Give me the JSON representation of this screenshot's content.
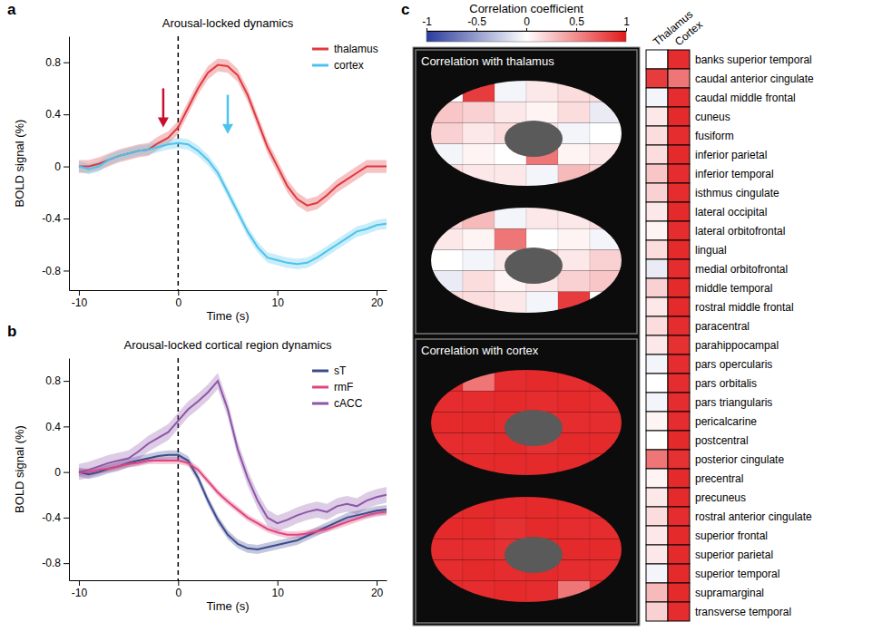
{
  "chart_data": [
    {
      "type": "line",
      "panel_label": "a",
      "title": "Arousal-locked dynamics",
      "x_label": "Time (s)",
      "y_label": "BOLD signal (%)",
      "x": [
        -10,
        -9,
        -8,
        -7,
        -6,
        -5,
        -4,
        -3,
        -2,
        -1,
        0,
        1,
        2,
        3,
        4,
        5,
        6,
        7,
        8,
        9,
        10,
        11,
        12,
        13,
        14,
        15,
        16,
        17,
        18,
        19,
        20,
        21
      ],
      "series": [
        {
          "name": "thalamus",
          "color": "#e0393e",
          "values": [
            0,
            0,
            0.02,
            0.05,
            0.08,
            0.1,
            0.12,
            0.13,
            0.18,
            0.22,
            0.3,
            0.45,
            0.6,
            0.72,
            0.78,
            0.77,
            0.7,
            0.55,
            0.35,
            0.15,
            0,
            -0.15,
            -0.25,
            -0.3,
            -0.28,
            -0.22,
            -0.15,
            -0.1,
            -0.05,
            0,
            0,
            0
          ],
          "errors": [
            0.05,
            0.05,
            0.05,
            0.05,
            0.05,
            0.05,
            0.05,
            0.05,
            0.05,
            0.05,
            0.05,
            0.05,
            0.05,
            0.05,
            0.05,
            0.05,
            0.05,
            0.05,
            0.05,
            0.05,
            0.05,
            0.05,
            0.05,
            0.05,
            0.05,
            0.05,
            0.05,
            0.05,
            0.05,
            0.05,
            0.05,
            0.05
          ]
        },
        {
          "name": "cortex",
          "color": "#4cc3ec",
          "values": [
            0,
            -0.02,
            0,
            0.05,
            0.08,
            0.1,
            0.12,
            0.13,
            0.15,
            0.17,
            0.18,
            0.17,
            0.12,
            0.05,
            -0.05,
            -0.2,
            -0.35,
            -0.5,
            -0.62,
            -0.7,
            -0.72,
            -0.74,
            -0.75,
            -0.74,
            -0.7,
            -0.65,
            -0.6,
            -0.55,
            -0.5,
            -0.48,
            -0.45,
            -0.44
          ],
          "errors": [
            0.04,
            0.04,
            0.04,
            0.04,
            0.04,
            0.04,
            0.04,
            0.04,
            0.04,
            0.04,
            0.04,
            0.04,
            0.04,
            0.04,
            0.04,
            0.04,
            0.04,
            0.04,
            0.04,
            0.04,
            0.04,
            0.04,
            0.04,
            0.04,
            0.04,
            0.04,
            0.04,
            0.04,
            0.04,
            0.04,
            0.04,
            0.04
          ]
        }
      ],
      "vline": 0,
      "arrows": [
        {
          "x": -1.5,
          "y_from": 0.6,
          "y_to": 0.3,
          "color": "#c8102e"
        },
        {
          "x": 5,
          "y_from": 0.55,
          "y_to": 0.25,
          "color": "#4cc3ec"
        }
      ],
      "xlim": [
        -11,
        21
      ],
      "xticks": [
        -10,
        0,
        10,
        20
      ],
      "ylim": [
        -0.95,
        1.0
      ],
      "yticks": [
        -0.8,
        -0.4,
        0,
        0.4,
        0.8
      ],
      "legend": "upper right"
    },
    {
      "type": "line",
      "panel_label": "b",
      "title": "Arousal-locked cortical region dynamics",
      "x_label": "Time (s)",
      "y_label": "BOLD signal (%)",
      "x": [
        -10,
        -9,
        -8,
        -7,
        -6,
        -5,
        -4,
        -3,
        -2,
        -1,
        0,
        1,
        2,
        3,
        4,
        5,
        6,
        7,
        8,
        9,
        10,
        11,
        12,
        13,
        14,
        15,
        16,
        17,
        18,
        19,
        20,
        21
      ],
      "series": [
        {
          "name": "sT",
          "color": "#3d4a8f",
          "values": [
            0,
            -0.02,
            0,
            0.03,
            0.05,
            0.08,
            0.1,
            0.12,
            0.14,
            0.15,
            0.15,
            0.1,
            -0.05,
            -0.25,
            -0.42,
            -0.55,
            -0.63,
            -0.67,
            -0.68,
            -0.66,
            -0.64,
            -0.62,
            -0.6,
            -0.56,
            -0.52,
            -0.48,
            -0.44,
            -0.4,
            -0.38,
            -0.36,
            -0.34,
            -0.33
          ],
          "errors": [
            0.04,
            0.04,
            0.04,
            0.04,
            0.04,
            0.04,
            0.04,
            0.04,
            0.04,
            0.04,
            0.04,
            0.04,
            0.04,
            0.04,
            0.04,
            0.04,
            0.04,
            0.04,
            0.04,
            0.04,
            0.04,
            0.04,
            0.04,
            0.04,
            0.04,
            0.04,
            0.04,
            0.04,
            0.04,
            0.04,
            0.04,
            0.04
          ]
        },
        {
          "name": "rmF",
          "color": "#e0457e",
          "values": [
            0,
            0,
            0.02,
            0.03,
            0.05,
            0.07,
            0.08,
            0.1,
            0.1,
            0.1,
            0.1,
            0.08,
            0.02,
            -0.08,
            -0.18,
            -0.26,
            -0.33,
            -0.4,
            -0.45,
            -0.5,
            -0.53,
            -0.55,
            -0.55,
            -0.54,
            -0.52,
            -0.5,
            -0.47,
            -0.44,
            -0.41,
            -0.38,
            -0.36,
            -0.35
          ],
          "errors": [
            0.03,
            0.03,
            0.03,
            0.03,
            0.03,
            0.03,
            0.03,
            0.03,
            0.03,
            0.03,
            0.03,
            0.03,
            0.03,
            0.03,
            0.03,
            0.03,
            0.03,
            0.03,
            0.03,
            0.03,
            0.03,
            0.03,
            0.03,
            0.03,
            0.03,
            0.03,
            0.03,
            0.03,
            0.03,
            0.03,
            0.03,
            0.03
          ]
        },
        {
          "name": "cACC",
          "color": "#8e55a8",
          "values": [
            0,
            0.02,
            0.05,
            0.08,
            0.1,
            0.12,
            0.18,
            0.25,
            0.3,
            0.35,
            0.45,
            0.55,
            0.62,
            0.7,
            0.8,
            0.55,
            0.2,
            -0.05,
            -0.25,
            -0.4,
            -0.45,
            -0.42,
            -0.38,
            -0.35,
            -0.33,
            -0.35,
            -0.3,
            -0.28,
            -0.3,
            -0.25,
            -0.22,
            -0.2
          ],
          "errors": [
            0.07,
            0.07,
            0.07,
            0.07,
            0.07,
            0.07,
            0.07,
            0.07,
            0.07,
            0.07,
            0.07,
            0.07,
            0.07,
            0.07,
            0.07,
            0.07,
            0.07,
            0.07,
            0.07,
            0.07,
            0.07,
            0.07,
            0.07,
            0.07,
            0.07,
            0.07,
            0.07,
            0.07,
            0.07,
            0.07,
            0.07,
            0.07
          ]
        }
      ],
      "vline": 0,
      "xlim": [
        -11,
        21
      ],
      "xticks": [
        -10,
        0,
        10,
        20
      ],
      "ylim": [
        -0.95,
        1.0
      ],
      "yticks": [
        -0.8,
        -0.4,
        0,
        0.4,
        0.8
      ],
      "legend": "upper right"
    },
    {
      "type": "heatmap",
      "panel_label": "c",
      "brain_titles": [
        "Correlation with thalamus",
        "Correlation with cortex"
      ],
      "x_categories": [
        "Thalamus",
        "Cortex"
      ],
      "y_categories": [
        "banks superior temporal",
        "caudal anterior cingulate",
        "caudal middle frontal",
        "cuneus",
        "fusiform",
        "inferior parietal",
        "inferior temporal",
        "isthmus cingulate",
        "lateral occipital",
        "lateral orbitofrontal",
        "lingual",
        "medial orbitofrontal",
        "middle temporal",
        "rostral middle frontal",
        "paracentral",
        "parahippocampal",
        "pars opercularis",
        "pars orbitalis",
        "pars triangularis",
        "pericalcarine",
        "postcentral",
        "posterior cingulate",
        "precentral",
        "precuneus",
        "rostral anterior cingulate",
        "superior frontal",
        "superior parietal",
        "superior temporal",
        "supramarginal",
        "transverse temporal"
      ],
      "cells": [
        [
          0.0,
          0.92
        ],
        [
          0.85,
          0.6
        ],
        [
          -0.05,
          0.92
        ],
        [
          0.1,
          0.93
        ],
        [
          0.15,
          0.92
        ],
        [
          0.15,
          0.93
        ],
        [
          0.25,
          0.92
        ],
        [
          0.2,
          0.92
        ],
        [
          0.1,
          0.93
        ],
        [
          0.05,
          0.92
        ],
        [
          0.15,
          0.93
        ],
        [
          -0.1,
          0.92
        ],
        [
          0.2,
          0.93
        ],
        [
          0.1,
          0.93
        ],
        [
          0.15,
          0.92
        ],
        [
          0.1,
          0.9
        ],
        [
          -0.05,
          0.92
        ],
        [
          0.0,
          0.92
        ],
        [
          -0.05,
          0.92
        ],
        [
          0.05,
          0.92
        ],
        [
          0.0,
          0.93
        ],
        [
          0.6,
          0.9
        ],
        [
          0.05,
          0.93
        ],
        [
          0.1,
          0.93
        ],
        [
          0.15,
          0.92
        ],
        [
          0.1,
          0.93
        ],
        [
          0.1,
          0.93
        ],
        [
          -0.05,
          0.93
        ],
        [
          0.3,
          0.93
        ],
        [
          0.2,
          0.92
        ]
      ],
      "colorbar": {
        "title": "Correlation coefficient",
        "range": [
          -1,
          1
        ],
        "ticks": [
          -1,
          -0.5,
          0,
          0.5,
          1
        ]
      }
    }
  ]
}
